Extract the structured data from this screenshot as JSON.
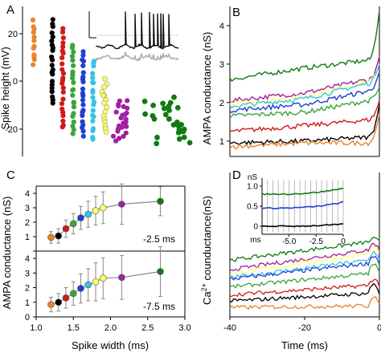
{
  "figure": {
    "panel_labels": [
      "A",
      "B",
      "C",
      "D"
    ],
    "colors": [
      "#e8842c",
      "#000000",
      "#d01a1a",
      "#3aa53a",
      "#1f3fd1",
      "#35c3e6",
      "#ffff66",
      "#a11fa1",
      "#117a11"
    ],
    "colors_note_keys": [
      "orange",
      "black",
      "red",
      "green",
      "blue",
      "cyan",
      "yellow",
      "purple",
      "darkgreen"
    ]
  },
  "chart_data": [
    {
      "panel": "A",
      "type": "scatter",
      "ylabel": "Spike height (mV)",
      "ylim": [
        -28,
        26
      ],
      "yticks": [
        20,
        0,
        -20
      ],
      "columns": [
        {
          "color_index": 0,
          "x": 1.2,
          "y_top": 20.5,
          "y_bottom": 5,
          "n": 12
        },
        {
          "color_index": 1,
          "x": 1.3,
          "y_top": 21,
          "y_bottom": -9,
          "n": 22
        },
        {
          "color_index": 2,
          "x": 1.4,
          "y_top": 18,
          "y_bottom": -18,
          "n": 24
        },
        {
          "color_index": 3,
          "x": 1.5,
          "y_top": 12,
          "y_bottom": -20,
          "n": 22
        },
        {
          "color_index": 4,
          "x": 1.6,
          "y_top": 10,
          "y_bottom": -21,
          "n": 22
        },
        {
          "color_index": 5,
          "x": 1.7,
          "y_top": 7,
          "y_bottom": -22,
          "n": 20
        },
        {
          "color_index": 6,
          "x": 1.8,
          "y_top": 0,
          "y_bottom": -20,
          "n": 16
        },
        {
          "color_index": 7,
          "x": 2.0,
          "y_top": -8,
          "y_bottom": -22,
          "n": 24
        },
        {
          "color_index": 8,
          "x": 2.5,
          "y_top": -7,
          "y_bottom": -23,
          "n": 28
        }
      ],
      "inset": {
        "type": "trace",
        "traces": [
          "black",
          "gray"
        ]
      }
    },
    {
      "panel": "B",
      "type": "line",
      "ylabel": "AMPA conductance (nS)",
      "xlim": [
        -40,
        0
      ],
      "ylim": [
        0.6,
        4.5
      ],
      "yticks": [
        1,
        2,
        3,
        4
      ],
      "series": [
        {
          "color_index": 8,
          "start": 2.6,
          "mid": 2.9,
          "end": 3.1,
          "peak": 4.4
        },
        {
          "color_index": 7,
          "start": 2.05,
          "mid": 2.25,
          "end": 2.6,
          "peak": 3.2
        },
        {
          "color_index": 6,
          "start": 1.95,
          "mid": 2.15,
          "end": 2.55,
          "peak": 3.0
        },
        {
          "color_index": 5,
          "start": 1.9,
          "mid": 2.1,
          "end": 2.5,
          "peak": 3.0
        },
        {
          "color_index": 4,
          "start": 1.8,
          "mid": 1.95,
          "end": 2.3,
          "peak": 2.8
        },
        {
          "color_index": 3,
          "start": 1.65,
          "mid": 1.75,
          "end": 2.05,
          "peak": 2.4
        },
        {
          "color_index": 2,
          "start": 1.25,
          "mid": 1.4,
          "end": 1.55,
          "peak": 2.05
        },
        {
          "color_index": 1,
          "start": 0.95,
          "mid": 1.0,
          "end": 1.1,
          "peak": 1.95
        },
        {
          "color_index": 0,
          "start": 0.85,
          "mid": 0.95,
          "end": 0.95,
          "peak": 1.7
        }
      ]
    },
    {
      "panel": "C-top",
      "type": "scatter",
      "annotation": "-2.5 ms",
      "ylim": [
        0,
        4.5
      ],
      "yticks": [
        0,
        1,
        2,
        3,
        4
      ],
      "xlim": [
        1.0,
        3.0
      ],
      "x": [
        1.2,
        1.3,
        1.4,
        1.5,
        1.6,
        1.7,
        1.8,
        1.9,
        2.15,
        2.67
      ],
      "y": [
        0.95,
        1.05,
        1.55,
        1.9,
        2.3,
        2.55,
        2.8,
        3.0,
        3.25,
        3.45
      ],
      "err": [
        0.4,
        0.5,
        0.6,
        0.7,
        0.8,
        0.9,
        1.0,
        1.1,
        1.4,
        1.0
      ],
      "color_index": [
        0,
        1,
        2,
        3,
        4,
        5,
        6,
        6,
        7,
        8
      ]
    },
    {
      "panel": "C-bottom",
      "type": "scatter",
      "annotation": "-7.5 ms",
      "ylabel": "AMPA conductance (nS)",
      "xlabel": "Spike width (ms)",
      "xlim": [
        1.0,
        3.0
      ],
      "xticks": [
        1.0,
        1.5,
        2.0,
        2.5,
        3.0
      ],
      "ylim": [
        0,
        4.5
      ],
      "yticks": [
        0,
        1,
        2,
        3,
        4
      ],
      "x": [
        1.2,
        1.3,
        1.4,
        1.5,
        1.6,
        1.7,
        1.8,
        1.9,
        2.15,
        2.67
      ],
      "y": [
        0.85,
        1.0,
        1.3,
        1.6,
        1.95,
        2.2,
        2.4,
        2.65,
        2.7,
        3.1
      ],
      "err": [
        0.5,
        0.6,
        0.7,
        0.8,
        1.0,
        1.1,
        1.3,
        1.4,
        1.5,
        1.7
      ],
      "color_index": [
        0,
        1,
        2,
        3,
        4,
        5,
        6,
        6,
        7,
        8
      ]
    },
    {
      "panel": "D",
      "type": "line",
      "ylabel": "Ca2+ counductance(nS)",
      "xlabel": "Time (ms)",
      "xlim": [
        -40,
        0
      ],
      "xticks": [
        -40,
        -20,
        0
      ],
      "series": [
        {
          "color_index": 8,
          "start": 0.72,
          "end": 0.95,
          "peak": 1.0
        },
        {
          "color_index": 7,
          "start": 0.6,
          "end": 0.85,
          "peak": 0.95
        },
        {
          "color_index": 6,
          "start": 0.55,
          "end": 0.8,
          "peak": 0.9
        },
        {
          "color_index": 5,
          "start": 0.5,
          "end": 0.72,
          "peak": 0.85
        },
        {
          "color_index": 4,
          "start": 0.48,
          "end": 0.68,
          "peak": 0.8
        },
        {
          "color_index": 3,
          "start": 0.38,
          "end": 0.55,
          "peak": 0.7
        },
        {
          "color_index": 2,
          "start": 0.28,
          "end": 0.4,
          "peak": 0.5
        },
        {
          "color_index": 1,
          "start": 0.2,
          "end": 0.3,
          "peak": 0.45
        },
        {
          "color_index": 0,
          "start": 0.12,
          "end": 0.14,
          "peak": 0.3
        }
      ],
      "inset": {
        "ylabel": "nS",
        "yticks": [
          1.0,
          0.5,
          0
        ],
        "xlabel": "ms",
        "xticks": [
          -5.0,
          -2.5,
          0
        ],
        "xlim": [
          -7.5,
          0
        ],
        "ylim": [
          -0.2,
          1.2
        ],
        "series": [
          {
            "color_index": 8,
            "start": 0.8,
            "end": 0.95
          },
          {
            "color_index": 4,
            "start": 0.45,
            "end": 0.6
          },
          {
            "color_index": 1,
            "start": 0.0,
            "end": 0.05
          }
        ]
      }
    }
  ],
  "text": {
    "A_ylabel": "Spike height (mV)",
    "A_ticks": [
      "20",
      "0",
      "-20"
    ],
    "B_ylabel": "AMPA conductance (nS)",
    "B_ticks": [
      "4",
      "3",
      "2",
      "1"
    ],
    "C_ylabel": "AMPA conductance (nS)",
    "C_top_ticks": [
      "4",
      "3",
      "2",
      "1",
      "0"
    ],
    "C_bottom_ticks": [
      "4",
      "3",
      "2",
      "1",
      "0"
    ],
    "C_top_annot": "-2.5 ms",
    "C_bottom_annot": "-7.5 ms",
    "C_xlabel": "Spike width (ms)",
    "C_xticks": [
      "1.0",
      "1.5",
      "2.0",
      "2.5",
      "3.0"
    ],
    "D_ylabel_main": "Ca",
    "D_ylabel_sup": "2+",
    "D_ylabel_rest": " counductance(nS)",
    "D_xlabel": "Time (ms)",
    "D_xticks": [
      "-40",
      "-20",
      "0"
    ],
    "D_inset_ylabel": "nS",
    "D_inset_yticks": [
      "1.0",
      "0.5",
      "0"
    ],
    "D_inset_xlabel": "ms",
    "D_inset_xticks": [
      "-5.0",
      "-2.5",
      "0"
    ]
  }
}
